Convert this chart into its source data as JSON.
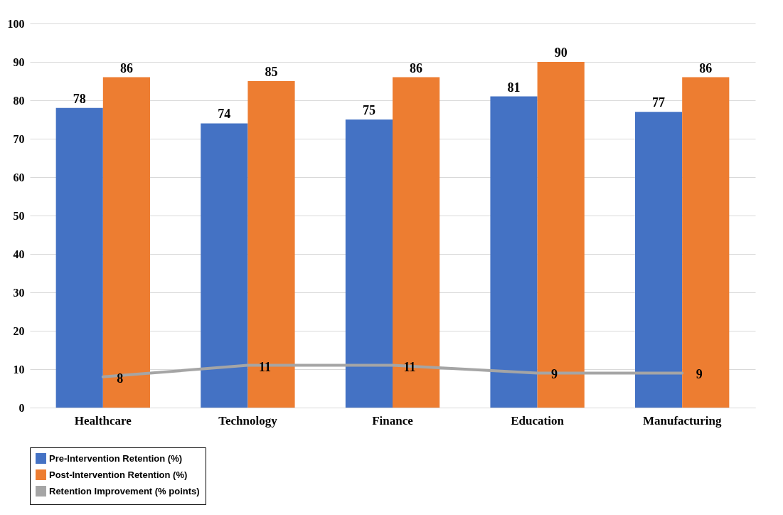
{
  "chart_data": {
    "type": "bar",
    "categories": [
      "Healthcare",
      "Technology",
      "Finance",
      "Education",
      "Manufacturing"
    ],
    "series": [
      {
        "name": "Pre-Intervention Retention (%)",
        "color": "#4472c4",
        "values": [
          78,
          74,
          75,
          81,
          77
        ]
      },
      {
        "name": "Post-Intervention Retention (%)",
        "color": "#ed7d31",
        "values": [
          86,
          85,
          86,
          90,
          86
        ]
      },
      {
        "name": "Retention Improvement (% points)",
        "color": "#a5a5a5",
        "type": "line",
        "values": [
          8,
          11,
          11,
          9,
          9
        ]
      }
    ],
    "ylim": [
      0,
      100
    ],
    "yticks": [
      0,
      10,
      20,
      30,
      40,
      50,
      60,
      70,
      80,
      90,
      100
    ],
    "grid": "y",
    "legend": "bottom",
    "data_labels": true
  }
}
